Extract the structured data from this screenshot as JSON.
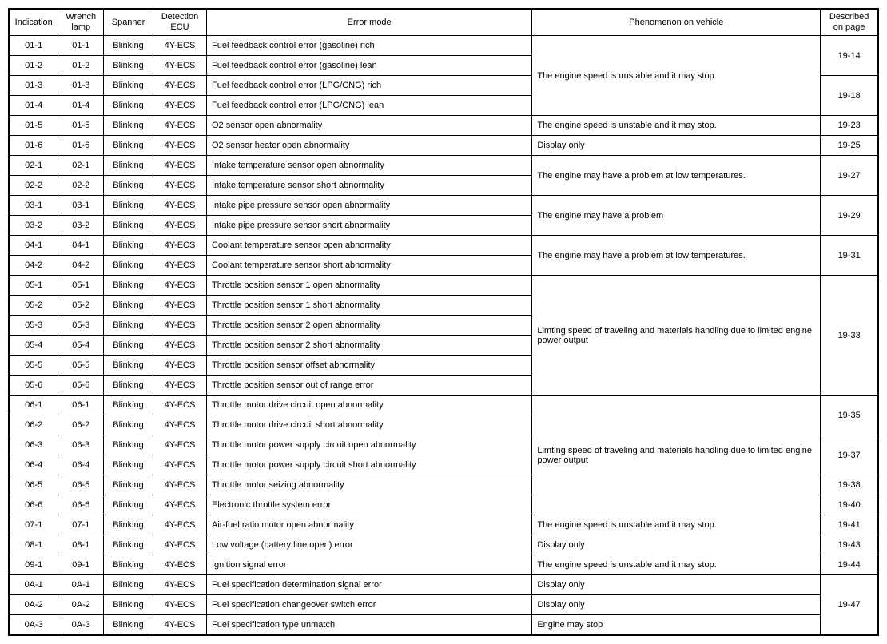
{
  "table": {
    "columns": [
      "Indication",
      "Wrench lamp",
      "Spanner",
      "Detection ECU",
      "Error mode",
      "Phenomenon on vehicle",
      "Described on page"
    ],
    "background_color": "#ffffff",
    "border_color": "#000000",
    "font_size": 11,
    "rows": [
      {
        "indication": "01-1",
        "wrench": "01-1",
        "spanner": "Blinking",
        "ecu": "4Y-ECS",
        "error": "Fuel feedback control error (gasoline) rich"
      },
      {
        "indication": "01-2",
        "wrench": "01-2",
        "spanner": "Blinking",
        "ecu": "4Y-ECS",
        "error": "Fuel feedback control error (gasoline) lean"
      },
      {
        "indication": "01-3",
        "wrench": "01-3",
        "spanner": "Blinking",
        "ecu": "4Y-ECS",
        "error": "Fuel feedback control error (LPG/CNG) rich"
      },
      {
        "indication": "01-4",
        "wrench": "01-4",
        "spanner": "Blinking",
        "ecu": "4Y-ECS",
        "error": "Fuel feedback control error (LPG/CNG) lean"
      },
      {
        "indication": "01-5",
        "wrench": "01-5",
        "spanner": "Blinking",
        "ecu": "4Y-ECS",
        "error": "O2 sensor open abnormality"
      },
      {
        "indication": "01-6",
        "wrench": "01-6",
        "spanner": "Blinking",
        "ecu": "4Y-ECS",
        "error": "O2 sensor heater open abnormality"
      },
      {
        "indication": "02-1",
        "wrench": "02-1",
        "spanner": "Blinking",
        "ecu": "4Y-ECS",
        "error": "Intake temperature sensor open abnormality"
      },
      {
        "indication": "02-2",
        "wrench": "02-2",
        "spanner": "Blinking",
        "ecu": "4Y-ECS",
        "error": "Intake temperature sensor short abnormality"
      },
      {
        "indication": "03-1",
        "wrench": "03-1",
        "spanner": "Blinking",
        "ecu": "4Y-ECS",
        "error": "Intake pipe pressure sensor open abnormality"
      },
      {
        "indication": "03-2",
        "wrench": "03-2",
        "spanner": "Blinking",
        "ecu": "4Y-ECS",
        "error": "Intake pipe pressure sensor short abnormality"
      },
      {
        "indication": "04-1",
        "wrench": "04-1",
        "spanner": "Blinking",
        "ecu": "4Y-ECS",
        "error": "Coolant temperature sensor open abnormality"
      },
      {
        "indication": "04-2",
        "wrench": "04-2",
        "spanner": "Blinking",
        "ecu": "4Y-ECS",
        "error": "Coolant temperature sensor short abnormality"
      },
      {
        "indication": "05-1",
        "wrench": "05-1",
        "spanner": "Blinking",
        "ecu": "4Y-ECS",
        "error": "Throttle position sensor 1 open abnormality"
      },
      {
        "indication": "05-2",
        "wrench": "05-2",
        "spanner": "Blinking",
        "ecu": "4Y-ECS",
        "error": "Throttle position sensor 1 short abnormality"
      },
      {
        "indication": "05-3",
        "wrench": "05-3",
        "spanner": "Blinking",
        "ecu": "4Y-ECS",
        "error": "Throttle position sensor 2 open abnormality"
      },
      {
        "indication": "05-4",
        "wrench": "05-4",
        "spanner": "Blinking",
        "ecu": "4Y-ECS",
        "error": "Throttle position sensor 2 short abnormality"
      },
      {
        "indication": "05-5",
        "wrench": "05-5",
        "spanner": "Blinking",
        "ecu": "4Y-ECS",
        "error": "Throttle position sensor offset abnormality"
      },
      {
        "indication": "05-6",
        "wrench": "05-6",
        "spanner": "Blinking",
        "ecu": "4Y-ECS",
        "error": "Throttle position sensor out of range error"
      },
      {
        "indication": "06-1",
        "wrench": "06-1",
        "spanner": "Blinking",
        "ecu": "4Y-ECS",
        "error": "Throttle motor drive circuit open abnormality"
      },
      {
        "indication": "06-2",
        "wrench": "06-2",
        "spanner": "Blinking",
        "ecu": "4Y-ECS",
        "error": "Throttle motor drive circuit short abnormality"
      },
      {
        "indication": "06-3",
        "wrench": "06-3",
        "spanner": "Blinking",
        "ecu": "4Y-ECS",
        "error": "Throttle motor power supply circuit open abnormality"
      },
      {
        "indication": "06-4",
        "wrench": "06-4",
        "spanner": "Blinking",
        "ecu": "4Y-ECS",
        "error": "Throttle motor power supply circuit short abnormality"
      },
      {
        "indication": "06-5",
        "wrench": "06-5",
        "spanner": "Blinking",
        "ecu": "4Y-ECS",
        "error": "Throttle motor seizing abnormality"
      },
      {
        "indication": "06-6",
        "wrench": "06-6",
        "spanner": "Blinking",
        "ecu": "4Y-ECS",
        "error": "Electronic throttle system error"
      },
      {
        "indication": "07-1",
        "wrench": "07-1",
        "spanner": "Blinking",
        "ecu": "4Y-ECS",
        "error": "Air-fuel ratio motor open abnormality"
      },
      {
        "indication": "08-1",
        "wrench": "08-1",
        "spanner": "Blinking",
        "ecu": "4Y-ECS",
        "error": "Low voltage (battery line open) error"
      },
      {
        "indication": "09-1",
        "wrench": "09-1",
        "spanner": "Blinking",
        "ecu": "4Y-ECS",
        "error": "Ignition signal error"
      },
      {
        "indication": "0A-1",
        "wrench": "0A-1",
        "spanner": "Blinking",
        "ecu": "4Y-ECS",
        "error": "Fuel specification determination signal error"
      },
      {
        "indication": "0A-2",
        "wrench": "0A-2",
        "spanner": "Blinking",
        "ecu": "4Y-ECS",
        "error": "Fuel specification changeover switch error"
      },
      {
        "indication": "0A-3",
        "wrench": "0A-3",
        "spanner": "Blinking",
        "ecu": "4Y-ECS",
        "error": "Fuel specification type unmatch"
      }
    ],
    "phenomenon_spans": [
      {
        "start": 0,
        "span": 4,
        "text": "The engine speed is unstable and it may stop."
      },
      {
        "start": 4,
        "span": 1,
        "text": "The engine speed is unstable and it may stop."
      },
      {
        "start": 5,
        "span": 1,
        "text": "Display only"
      },
      {
        "start": 6,
        "span": 2,
        "text": "The engine may have a problem at low temperatures."
      },
      {
        "start": 8,
        "span": 2,
        "text": "The engine may have a problem"
      },
      {
        "start": 10,
        "span": 2,
        "text": "The engine may have a problem at low temperatures."
      },
      {
        "start": 12,
        "span": 6,
        "text": "Limting speed of traveling and materials handling due to limited engine power output"
      },
      {
        "start": 18,
        "span": 6,
        "text": "Limting speed of traveling and materials handling due to limited engine power output"
      },
      {
        "start": 24,
        "span": 1,
        "text": "The engine speed is unstable and it may stop."
      },
      {
        "start": 25,
        "span": 1,
        "text": "Display only"
      },
      {
        "start": 26,
        "span": 1,
        "text": "The engine speed is unstable and it may stop."
      },
      {
        "start": 27,
        "span": 1,
        "text": "Display only"
      },
      {
        "start": 28,
        "span": 1,
        "text": "Display only"
      },
      {
        "start": 29,
        "span": 1,
        "text": "Engine may stop"
      }
    ],
    "page_spans": [
      {
        "start": 0,
        "span": 2,
        "text": "19-14"
      },
      {
        "start": 2,
        "span": 2,
        "text": "19-18"
      },
      {
        "start": 4,
        "span": 1,
        "text": "19-23"
      },
      {
        "start": 5,
        "span": 1,
        "text": "19-25"
      },
      {
        "start": 6,
        "span": 2,
        "text": "19-27"
      },
      {
        "start": 8,
        "span": 2,
        "text": "19-29"
      },
      {
        "start": 10,
        "span": 2,
        "text": "19-31"
      },
      {
        "start": 12,
        "span": 6,
        "text": "19-33"
      },
      {
        "start": 18,
        "span": 2,
        "text": "19-35"
      },
      {
        "start": 20,
        "span": 2,
        "text": "19-37"
      },
      {
        "start": 22,
        "span": 1,
        "text": "19-38"
      },
      {
        "start": 23,
        "span": 1,
        "text": "19-40"
      },
      {
        "start": 24,
        "span": 1,
        "text": "19-41"
      },
      {
        "start": 25,
        "span": 1,
        "text": "19-43"
      },
      {
        "start": 26,
        "span": 1,
        "text": "19-44"
      },
      {
        "start": 27,
        "span": 3,
        "text": "19-47"
      }
    ]
  }
}
